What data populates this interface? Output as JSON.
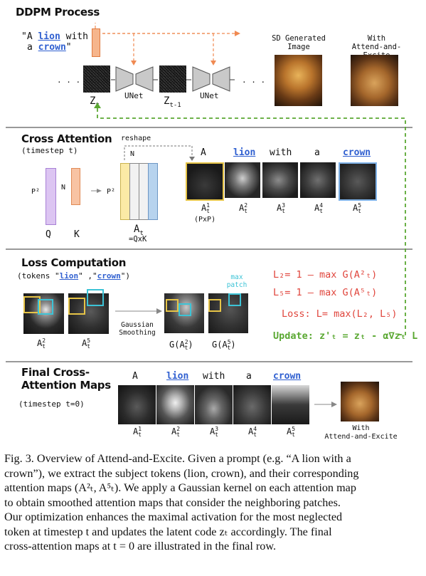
{
  "ddpm": {
    "title": "DDPM Process",
    "prompt_line1_a": "\"A ",
    "prompt_lion": "lion",
    "prompt_line1_b": " with",
    "prompt_line2_a": "a ",
    "prompt_crown": "crown",
    "prompt_line2_b": "\"",
    "dots_left": ". . .",
    "dots_right": ". . .",
    "zt": "Z",
    "zt_sub": "t",
    "zt1": "Z",
    "zt1_sub": "t-1",
    "unet1": "UNet",
    "unet2": "UNet",
    "sd_label_l1": "SD Generated",
    "sd_label_l2": "Image",
    "ae_label_l1": "With",
    "ae_label_l2": "Attend-and-Excite"
  },
  "cross": {
    "title": "Cross Attention",
    "subtitle": "(timestep t)",
    "reshape": "reshape",
    "n_top": "N",
    "n_left": "N",
    "p2_left": "P²",
    "p2_mid": "P²",
    "q": "Q",
    "k": "K",
    "at": "A",
    "at_sub": "t",
    "eq": "=QxK",
    "tokens": [
      "A",
      "lion",
      "with",
      "a",
      "crown"
    ],
    "maps": [
      "A",
      "A",
      "A",
      "A",
      "A"
    ],
    "map_sup": [
      "1",
      "2",
      "3",
      "4",
      "5"
    ],
    "map_sub": "t",
    "pxp": "(PxP)"
  },
  "loss": {
    "title": "Loss Computation",
    "tokens_a": "(tokens \"",
    "tokens_lion": "lion",
    "tokens_b": "\" ,\"",
    "tokens_crown": "crown",
    "tokens_c": "\")",
    "max_patch_l1": "max",
    "max_patch_l2": "patch",
    "a2": "A",
    "a2_sup": "2",
    "a5": "A",
    "a5_sup": "5",
    "sub_t": "t",
    "gauss_l1": "Gaussian",
    "gauss_l2": "Smoothing",
    "g2": "G(A",
    "g5": "G(A",
    "l2": "L₂= 1 – max G(A²ₜ)",
    "l5": "L₅= 1 – max G(A⁵ₜ)",
    "loss_eq": "Loss: L= max(L₂, L₅)",
    "update": "Update: z'ₜ = zₜ - α∇zₜ L"
  },
  "final": {
    "title_l1": "Final Cross-",
    "title_l2": "Attention Maps",
    "subtitle": "(timestep t=0)",
    "tokens": [
      "A",
      "lion",
      "with",
      "a",
      "crown"
    ],
    "maps": [
      "A",
      "A",
      "A",
      "A",
      "A"
    ],
    "map_sup": [
      "1",
      "2",
      "3",
      "4",
      "5"
    ],
    "map_sub": "t",
    "ae_l1": "With",
    "ae_l2": "Attend-and-Excite"
  },
  "caption": {
    "line1": "Fig. 3.  Overview of Attend-and-Excite. Given a prompt (e.g. “A lion with a",
    "line2": "crown”), we extract the subject tokens (lion, crown), and their corresponding",
    "line3": "attention maps (A²ₜ, A⁵ₜ). We apply a Gaussian kernel on each attention map",
    "line4": "to obtain smoothed attention maps that consider the neighboring patches.",
    "line5": "Our optimization enhances the maximal activation for the most neglected",
    "line6": "token at timestep t and updates the latent code zₜ accordingly. The final",
    "line7": "cross-attention maps at t = 0 are illustrated in the final row."
  },
  "colors": {
    "orange": "#f08a52",
    "green": "#5aa832",
    "red": "#e0453c",
    "blue": "#2f5fd0",
    "cyan": "#3cc3d6",
    "yellow": "#e6c447",
    "purple": "#c49be8"
  }
}
